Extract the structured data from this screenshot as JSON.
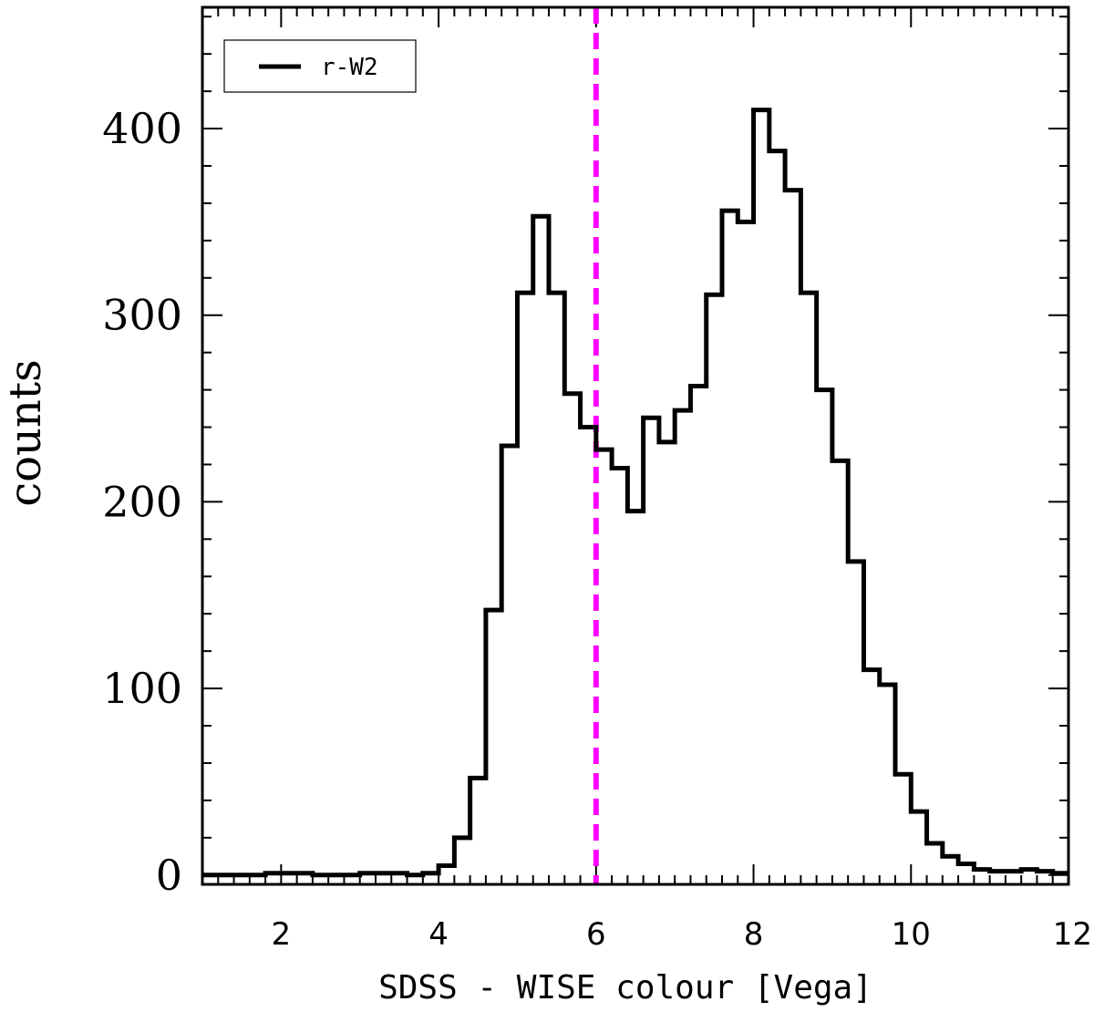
{
  "chart_data": {
    "type": "histogram",
    "title": "",
    "xlabel": "SDSS - WISE colour [Vega]",
    "ylabel": "counts",
    "xlim": [
      1,
      12
    ],
    "ylim": [
      -5,
      465
    ],
    "xticks": [
      2,
      4,
      6,
      8,
      10,
      12
    ],
    "yticks": [
      0,
      100,
      200,
      300,
      400
    ],
    "bin_width": 0.2,
    "series": [
      {
        "name": "r-W2",
        "color": "#000000",
        "bin_starts": [
          1.0,
          1.2,
          1.4,
          1.6,
          1.8,
          2.0,
          2.2,
          2.4,
          2.6,
          2.8,
          3.0,
          3.2,
          3.4,
          3.6,
          3.8,
          4.0,
          4.2,
          4.4,
          4.6,
          4.8,
          5.0,
          5.2,
          5.4,
          5.6,
          5.8,
          6.0,
          6.2,
          6.4,
          6.6,
          6.8,
          7.0,
          7.2,
          7.4,
          7.6,
          7.8,
          8.0,
          8.2,
          8.4,
          8.6,
          8.8,
          9.0,
          9.2,
          9.4,
          9.6,
          9.8,
          10.0,
          10.2,
          10.4,
          10.6,
          10.8,
          11.0,
          11.2,
          11.4,
          11.6,
          11.8
        ],
        "counts": [
          0,
          0,
          0,
          0,
          1,
          1,
          1,
          0,
          0,
          0,
          1,
          1,
          1,
          0,
          1,
          5,
          20,
          52,
          142,
          230,
          312,
          353,
          312,
          258,
          240,
          228,
          218,
          195,
          245,
          232,
          249,
          262,
          311,
          356,
          350,
          410,
          388,
          367,
          312,
          260,
          222,
          168,
          110,
          102,
          54,
          34,
          17,
          10,
          6,
          3,
          2,
          2,
          3,
          2,
          1
        ]
      }
    ],
    "reference_line": {
      "x": 6,
      "color": "#ff00ff",
      "style": "dashed"
    },
    "legend": {
      "position": "top-left",
      "entries": [
        "r-W2"
      ]
    }
  }
}
